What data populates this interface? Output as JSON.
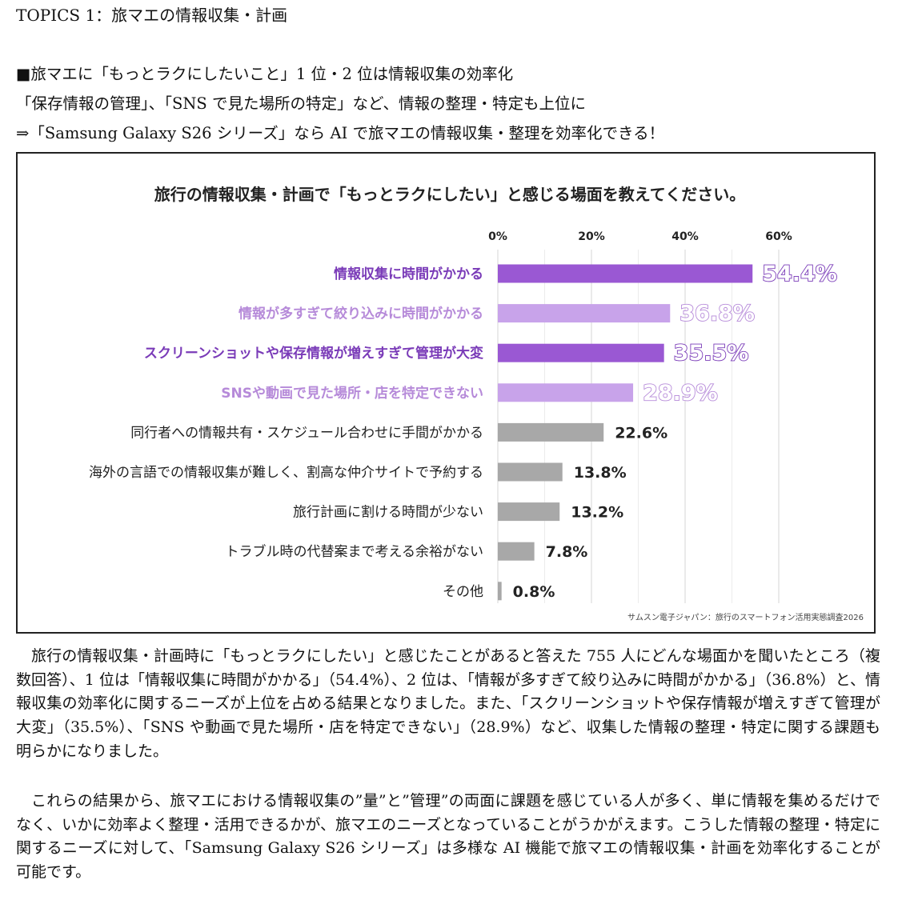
{
  "topic_title": "TOPICS 1：旅マエの情報収集・計画",
  "headlines": [
    "■旅マエに「もっとラクにしたいこと」1 位・2 位は情報収集の効率化",
    "「保存情報の管理」、「SNS で見た場所の特定」など、情報の整理・特定も上位に",
    "⇒「Samsung Galaxy S26 シリーズ」なら AI で旅マエの情報収集・整理を効率化できる！"
  ],
  "chart_data": {
    "type": "bar",
    "orientation": "horizontal",
    "title": "旅行の情報収集・計画で「もっとラクにしたい」と感じる場面を教えてください。",
    "x_ticks": [
      "0%",
      "20%",
      "40%",
      "60%"
    ],
    "xlim": [
      0,
      60
    ],
    "grid": true,
    "categories": [
      "情報収集に時間がかかる",
      "情報が多すぎて絞り込みに時間がかかる",
      "スクリーンショットや保存情報が増えすぎて管理が大変",
      "SNSや動画で見た場所・店を特定できない",
      "同行者への情報共有・スケジュール合わせに手間がかかる",
      "海外の言語での情報収集が難しく、割高な仲介サイトで予約する",
      "旅行計画に割ける時間が少ない",
      "トラブル時の代替案まで考える余裕がない",
      "その他"
    ],
    "values": [
      54.4,
      36.8,
      35.5,
      28.9,
      22.6,
      13.8,
      13.2,
      7.8,
      0.8
    ],
    "value_labels": [
      "54.4%",
      "36.8%",
      "35.5%",
      "28.9%",
      "22.6%",
      "13.8%",
      "13.2%",
      "7.8%",
      "0.8%"
    ],
    "bar_colors": [
      "#9a58d3",
      "#c8a3ea",
      "#9a58d3",
      "#c8a3ea",
      "#a8a8a8",
      "#a8a8a8",
      "#a8a8a8",
      "#a8a8a8",
      "#a8a8a8"
    ],
    "label_colors": [
      "#7a3bb8",
      "#b68ad9",
      "#7a3bb8",
      "#b68ad9",
      "#222222",
      "#222222",
      "#222222",
      "#222222",
      "#222222"
    ],
    "source": "サムスン電子ジャパン：旅行のスマートフォン活用実態調査2026"
  },
  "paragraphs": [
    "旅行の情報収集・計画時に「もっとラクにしたい」と感じたことがあると答えた 755 人にどんな場面かを聞いたところ（複数回答）、1 位は「情報収集に時間がかかる」（54.4%）、2 位は、「情報が多すぎて絞り込みに時間がかかる」（36.8%）と、情報収集の効率化に関するニーズが上位を占める結果となりました。また、「スクリーンショットや保存情報が増えすぎて管理が大変」（35.5%）、「SNS や動画で見た場所・店を特定できない」（28.9%）など、収集した情報の整理・特定に関する課題も明らかになりました。",
    "これらの結果から、旅マエにおける情報収集の”量”と”管理”の両面に課題を感じている人が多く、単に情報を集めるだけでなく、いかに効率よく整理・活用できるかが、旅マエのニーズとなっていることがうかがえます。こうした情報の整理・特定に関するニーズに対して、「Samsung Galaxy S26 シリーズ」は多様な AI 機能で旅マエの情報収集・計画を効率化することが可能です。"
  ]
}
